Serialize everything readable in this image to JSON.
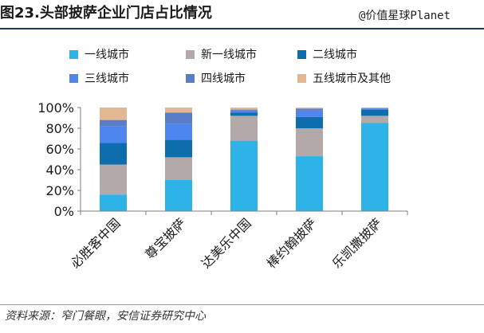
{
  "header": {
    "title": "图23.头部披萨企业门店占比情况",
    "watermark": "@价值星球Planet"
  },
  "footer": {
    "source": "资料来源：窄门餐眼，安信证券研究中心"
  },
  "chart_data": {
    "type": "bar",
    "stacked": true,
    "categories": [
      "必胜客中国",
      "尊宝披萨",
      "达美乐中国",
      "棒约翰披萨",
      "乐凯撒披萨"
    ],
    "series": [
      {
        "name": "一线城市",
        "color": "#2eb3e8",
        "values": [
          16,
          30,
          68,
          53,
          85
        ]
      },
      {
        "name": "新一线城市",
        "color": "#b3a9a9",
        "values": [
          29,
          22,
          24,
          27,
          7
        ]
      },
      {
        "name": "二线城市",
        "color": "#0e6ead",
        "values": [
          21,
          17,
          3,
          11,
          6
        ]
      },
      {
        "name": "三线城市",
        "color": "#4e86f0",
        "values": [
          16,
          15,
          2,
          6,
          1
        ]
      },
      {
        "name": "四线城市",
        "color": "#5a7dc8",
        "values": [
          6,
          11,
          1,
          2,
          0.5
        ]
      },
      {
        "name": "五线城市及其他",
        "color": "#e4b793",
        "values": [
          12,
          5,
          2,
          1,
          0.5
        ]
      }
    ],
    "yaxis": {
      "min": 0,
      "max": 100,
      "ticks": [
        "0%",
        "20%",
        "40%",
        "60%",
        "80%",
        "100%"
      ]
    },
    "legend_position": "top",
    "grid": false
  }
}
